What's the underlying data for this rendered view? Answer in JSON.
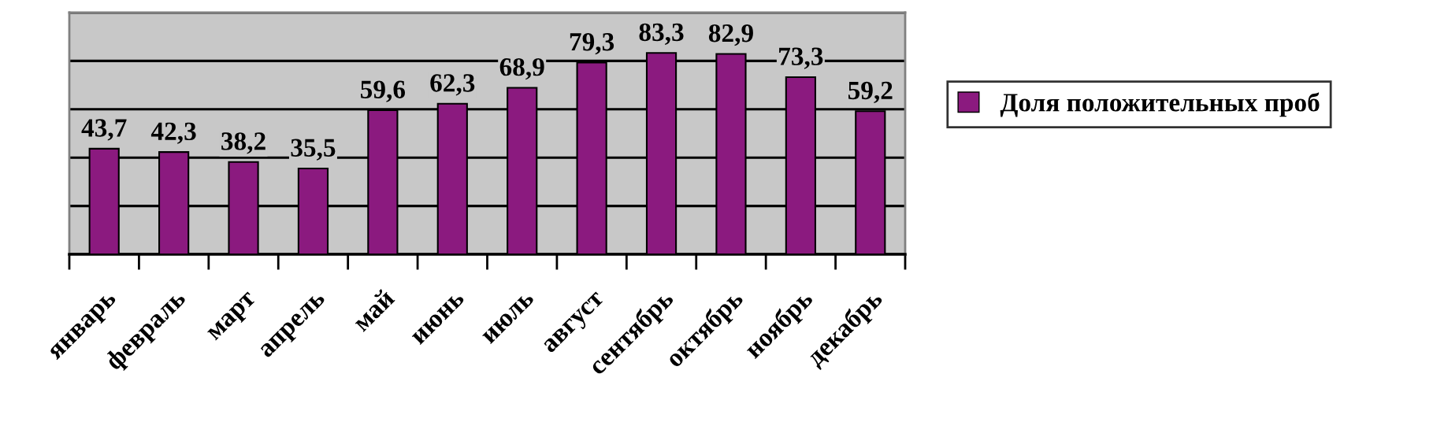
{
  "chart_data": {
    "type": "bar",
    "categories": [
      "январь",
      "февраль",
      "март",
      "апрель",
      "май",
      "июнь",
      "июль",
      "август",
      "сентябрь",
      "октябрь",
      "ноябрь",
      "декабрь"
    ],
    "series": [
      {
        "name": "Доля положительных проб",
        "color": "#8b1a7f",
        "values": [
          43.7,
          42.3,
          38.2,
          35.5,
          59.6,
          62.3,
          68.9,
          79.3,
          83.3,
          82.9,
          73.3,
          59.2
        ],
        "value_labels": [
          "43,7",
          "42,3",
          "38,2",
          "35,5",
          "59,6",
          "62,3",
          "68,9",
          "79,3",
          "83,3",
          "82,9",
          "73,3",
          "59,2"
        ]
      }
    ],
    "ylim": [
      0,
      100
    ],
    "yticks": [
      {
        "value": 0,
        "label": null
      },
      {
        "value": 20,
        "label": null
      },
      {
        "value": 40,
        "label": null
      },
      {
        "value": 60,
        "label": null
      },
      {
        "value": 80,
        "label": null
      },
      {
        "value": 100,
        "label": null
      }
    ],
    "grid": "y",
    "legend": "right",
    "tick_labels": "x"
  }
}
